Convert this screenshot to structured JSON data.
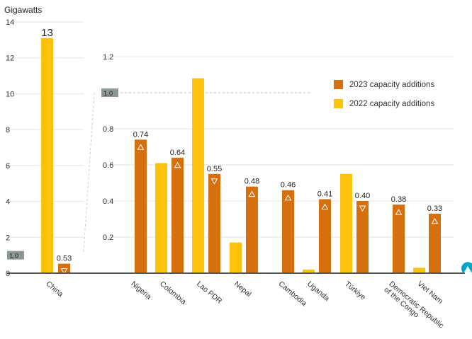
{
  "chart_data": {
    "type": "bar",
    "unit_label": "Gigawatts",
    "left_axis": {
      "ticks": [
        0,
        2,
        4,
        6,
        8,
        10,
        12,
        14
      ],
      "ylim": [
        0,
        14
      ]
    },
    "inset_axis": {
      "ticks": [
        0.2,
        0.4,
        0.6,
        0.8,
        1.0,
        1.2
      ],
      "ylim": [
        0,
        1.2
      ]
    },
    "highlight_label": "1.0",
    "legend": [
      {
        "name": "2023 capacity additions",
        "color": "#d6700f"
      },
      {
        "name": "2022 capacity additions",
        "color": "#fcc30a"
      }
    ],
    "categories": [
      "China",
      "Nigeria",
      "Colombia",
      "Lao PDR",
      "Nepal",
      "Cambodia",
      "Uganda",
      "Türkiye",
      "Democratic Republic\nof the Congo",
      "Viet Nam"
    ],
    "series": [
      {
        "name": "2023 capacity additions",
        "values": [
          0.53,
          0.74,
          0.64,
          0.55,
          0.48,
          0.46,
          0.41,
          0.4,
          0.38,
          0.33
        ],
        "labels": [
          "0.53",
          "0.74",
          "0.64",
          "0.55",
          "0.48",
          "0.46",
          "0.41",
          "0.40",
          "0.38",
          "0.33"
        ],
        "markers": [
          "down",
          "up",
          "up",
          "down",
          "up",
          "up",
          "up",
          "down",
          "up",
          "up"
        ]
      },
      {
        "name": "2022 capacity additions",
        "values": [
          13.1,
          null,
          0.61,
          1.08,
          0.17,
          null,
          0.02,
          0.55,
          null,
          0.03
        ],
        "labels": [
          "13",
          "",
          "",
          "",
          "",
          "",
          "",
          "",
          "",
          ""
        ]
      }
    ],
    "colors": {
      "bar_2023": "#d6700f",
      "bar_2022": "#fcc30a",
      "axis": "#555555",
      "grid": "#e3e3e3",
      "highlight_box": "#8c9693",
      "accent": "#00a6c8"
    }
  }
}
